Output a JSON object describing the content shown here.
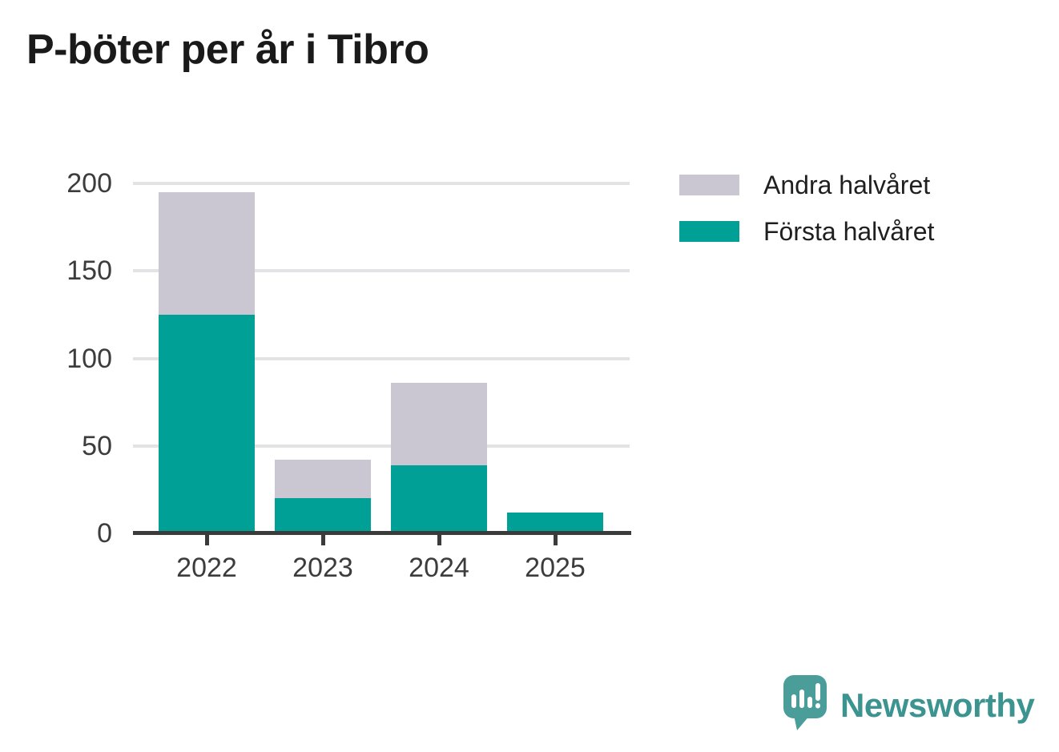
{
  "title": "P-böter per år i Tibro",
  "chart_data": {
    "type": "bar",
    "stacked": true,
    "title": "P-böter per år i Tibro",
    "categories": [
      "2022",
      "2023",
      "2024",
      "2025"
    ],
    "series": [
      {
        "name": "Första halvåret",
        "color": "#00A096",
        "values": [
          125,
          20,
          39,
          12
        ]
      },
      {
        "name": "Andra halvåret",
        "color": "#CAC7D3",
        "values": [
          70,
          22,
          47,
          0
        ]
      }
    ],
    "totals": [
      195,
      42,
      86,
      12
    ],
    "xlabel": "",
    "ylabel": "",
    "ylim": [
      0,
      200
    ],
    "yticks": [
      0,
      50,
      100,
      150,
      200
    ],
    "grid": true,
    "legend_position": "right-top",
    "legend": [
      {
        "label": "Andra halvåret",
        "color": "#CAC7D3"
      },
      {
        "label": "Första halvåret",
        "color": "#00A096"
      }
    ]
  },
  "colors": {
    "first_half": "#00A096",
    "second_half": "#CAC7D3",
    "axis": "#3b3b3b",
    "grid": "#e3e3e5",
    "brand": "#3b9490"
  },
  "branding": {
    "name": "Newsworthy",
    "logo_icon": "speech-bubble-bar-chart-icon"
  }
}
